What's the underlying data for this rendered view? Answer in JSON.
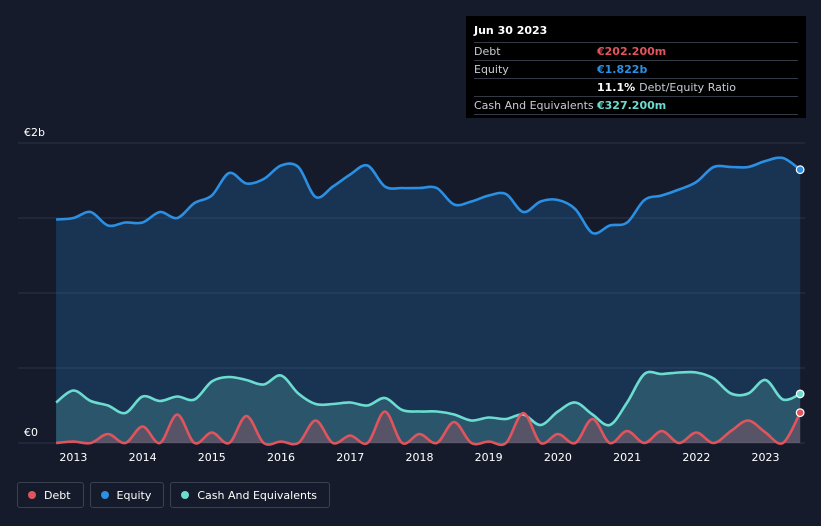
{
  "chart_data": {
    "type": "area",
    "y_axis": {
      "top_label": "€2b",
      "bottom_label": "€0",
      "min": 0,
      "max": 2.0,
      "unit": "b"
    },
    "grid": true,
    "x_ticks": [
      "2013",
      "2014",
      "2015",
      "2016",
      "2017",
      "2018",
      "2019",
      "2020",
      "2021",
      "2022",
      "2023"
    ],
    "x_range": [
      2012.2,
      2023.57
    ],
    "series": [
      {
        "name": "Equity",
        "color": "#2b8fe4",
        "points": [
          [
            2012.75,
            1.49
          ],
          [
            2013.0,
            1.5
          ],
          [
            2013.25,
            1.54
          ],
          [
            2013.5,
            1.45
          ],
          [
            2013.75,
            1.47
          ],
          [
            2014.0,
            1.47
          ],
          [
            2014.25,
            1.54
          ],
          [
            2014.5,
            1.5
          ],
          [
            2014.75,
            1.6
          ],
          [
            2015.0,
            1.65
          ],
          [
            2015.25,
            1.8
          ],
          [
            2015.5,
            1.73
          ],
          [
            2015.75,
            1.76
          ],
          [
            2016.0,
            1.85
          ],
          [
            2016.25,
            1.84
          ],
          [
            2016.5,
            1.64
          ],
          [
            2016.75,
            1.71
          ],
          [
            2017.0,
            1.79
          ],
          [
            2017.25,
            1.85
          ],
          [
            2017.5,
            1.71
          ],
          [
            2017.75,
            1.7
          ],
          [
            2018.0,
            1.7
          ],
          [
            2018.25,
            1.7
          ],
          [
            2018.5,
            1.59
          ],
          [
            2018.75,
            1.61
          ],
          [
            2019.0,
            1.65
          ],
          [
            2019.25,
            1.66
          ],
          [
            2019.5,
            1.54
          ],
          [
            2019.75,
            1.61
          ],
          [
            2020.0,
            1.62
          ],
          [
            2020.25,
            1.56
          ],
          [
            2020.5,
            1.4
          ],
          [
            2020.75,
            1.45
          ],
          [
            2021.0,
            1.47
          ],
          [
            2021.25,
            1.62
          ],
          [
            2021.5,
            1.65
          ],
          [
            2021.75,
            1.69
          ],
          [
            2022.0,
            1.74
          ],
          [
            2022.25,
            1.84
          ],
          [
            2022.5,
            1.84
          ],
          [
            2022.75,
            1.84
          ],
          [
            2023.0,
            1.88
          ],
          [
            2023.25,
            1.9
          ],
          [
            2023.5,
            1.822
          ]
        ]
      },
      {
        "name": "Cash And Equivalents",
        "color": "#6cdcd0",
        "points": [
          [
            2012.75,
            0.27
          ],
          [
            2013.0,
            0.35
          ],
          [
            2013.25,
            0.28
          ],
          [
            2013.5,
            0.25
          ],
          [
            2013.75,
            0.2
          ],
          [
            2014.0,
            0.31
          ],
          [
            2014.25,
            0.28
          ],
          [
            2014.5,
            0.31
          ],
          [
            2014.75,
            0.29
          ],
          [
            2015.0,
            0.41
          ],
          [
            2015.25,
            0.44
          ],
          [
            2015.5,
            0.42
          ],
          [
            2015.75,
            0.39
          ],
          [
            2016.0,
            0.45
          ],
          [
            2016.25,
            0.33
          ],
          [
            2016.5,
            0.26
          ],
          [
            2016.75,
            0.26
          ],
          [
            2017.0,
            0.27
          ],
          [
            2017.25,
            0.25
          ],
          [
            2017.5,
            0.3
          ],
          [
            2017.75,
            0.22
          ],
          [
            2018.0,
            0.21
          ],
          [
            2018.25,
            0.21
          ],
          [
            2018.5,
            0.19
          ],
          [
            2018.75,
            0.15
          ],
          [
            2019.0,
            0.17
          ],
          [
            2019.25,
            0.16
          ],
          [
            2019.5,
            0.19
          ],
          [
            2019.75,
            0.12
          ],
          [
            2020.0,
            0.21
          ],
          [
            2020.25,
            0.27
          ],
          [
            2020.5,
            0.19
          ],
          [
            2020.75,
            0.12
          ],
          [
            2021.0,
            0.27
          ],
          [
            2021.25,
            0.46
          ],
          [
            2021.5,
            0.46
          ],
          [
            2021.75,
            0.47
          ],
          [
            2022.0,
            0.47
          ],
          [
            2022.25,
            0.43
          ],
          [
            2022.5,
            0.33
          ],
          [
            2022.75,
            0.33
          ],
          [
            2023.0,
            0.42
          ],
          [
            2023.25,
            0.29
          ],
          [
            2023.5,
            0.3272
          ]
        ]
      },
      {
        "name": "Debt",
        "color": "#e0545d",
        "points": [
          [
            2012.75,
            0.0
          ],
          [
            2013.0,
            0.01
          ],
          [
            2013.25,
            0.0
          ],
          [
            2013.5,
            0.06
          ],
          [
            2013.75,
            0.0
          ],
          [
            2014.0,
            0.11
          ],
          [
            2014.25,
            0.0
          ],
          [
            2014.5,
            0.19
          ],
          [
            2014.75,
            0.0
          ],
          [
            2015.0,
            0.07
          ],
          [
            2015.25,
            0.0
          ],
          [
            2015.5,
            0.18
          ],
          [
            2015.75,
            0.0
          ],
          [
            2016.0,
            0.01
          ],
          [
            2016.25,
            0.0
          ],
          [
            2016.5,
            0.15
          ],
          [
            2016.75,
            0.0
          ],
          [
            2017.0,
            0.05
          ],
          [
            2017.25,
            0.0
          ],
          [
            2017.5,
            0.21
          ],
          [
            2017.75,
            0.0
          ],
          [
            2018.0,
            0.06
          ],
          [
            2018.25,
            0.0
          ],
          [
            2018.5,
            0.14
          ],
          [
            2018.75,
            0.0
          ],
          [
            2019.0,
            0.01
          ],
          [
            2019.25,
            0.0
          ],
          [
            2019.5,
            0.2
          ],
          [
            2019.75,
            0.0
          ],
          [
            2020.0,
            0.06
          ],
          [
            2020.25,
            0.0
          ],
          [
            2020.5,
            0.16
          ],
          [
            2020.75,
            0.0
          ],
          [
            2021.0,
            0.08
          ],
          [
            2021.25,
            0.0
          ],
          [
            2021.5,
            0.08
          ],
          [
            2021.75,
            0.0
          ],
          [
            2022.0,
            0.07
          ],
          [
            2022.25,
            0.0
          ],
          [
            2022.5,
            0.08
          ],
          [
            2022.75,
            0.15
          ],
          [
            2023.0,
            0.07
          ],
          [
            2023.25,
            0.0
          ],
          [
            2023.5,
            0.2022
          ]
        ]
      }
    ],
    "legend": {
      "placement": "bottom-left"
    }
  },
  "tooltip": {
    "date": "Jun 30 2023",
    "rows": [
      {
        "label": "Debt",
        "value": "€202.200m",
        "color": "#e0545d"
      },
      {
        "label": "Equity",
        "value": "€1.822b",
        "color": "#2b8fe4"
      },
      {
        "label": "",
        "value": "11.1%",
        "suffix": "Debt/Equity Ratio",
        "color": "#ffffff"
      },
      {
        "label": "Cash And Equivalents",
        "value": "€327.200m",
        "color": "#6cdcd0"
      }
    ]
  },
  "legend_items": [
    {
      "name": "Debt",
      "color": "#e0545d"
    },
    {
      "name": "Equity",
      "color": "#2b8fe4"
    },
    {
      "name": "Cash And Equivalents",
      "color": "#6cdcd0"
    }
  ]
}
